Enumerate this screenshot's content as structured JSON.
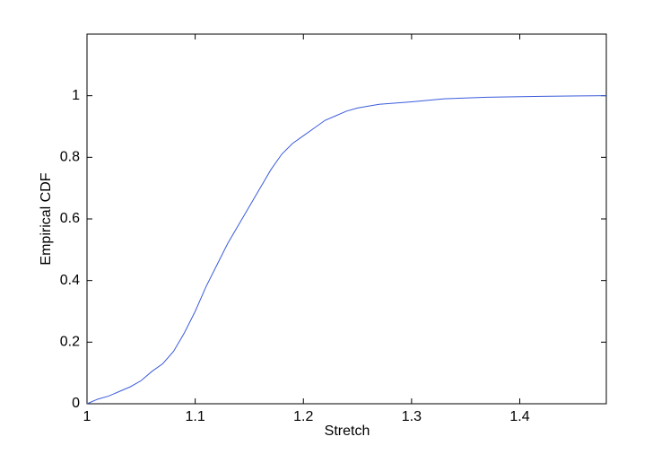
{
  "chart_data": {
    "type": "line",
    "xlabel": "Stretch",
    "ylabel": "Empirical CDF",
    "x": [
      1.0,
      1.01,
      1.02,
      1.03,
      1.04,
      1.05,
      1.06,
      1.07,
      1.08,
      1.09,
      1.1,
      1.11,
      1.12,
      1.13,
      1.14,
      1.15,
      1.16,
      1.17,
      1.18,
      1.19,
      1.2,
      1.21,
      1.22,
      1.23,
      1.24,
      1.25,
      1.27,
      1.3,
      1.33,
      1.37,
      1.42,
      1.48
    ],
    "series": [
      {
        "name": "Empirical CDF",
        "color": "#3b5bdb",
        "values": [
          0,
          0.015,
          0.025,
          0.04,
          0.055,
          0.075,
          0.105,
          0.13,
          0.17,
          0.23,
          0.3,
          0.38,
          0.45,
          0.52,
          0.58,
          0.64,
          0.7,
          0.76,
          0.81,
          0.845,
          0.87,
          0.895,
          0.92,
          0.935,
          0.95,
          0.96,
          0.972,
          0.98,
          0.99,
          0.995,
          0.998,
          1.0
        ]
      }
    ],
    "xlim": [
      1,
      1.48
    ],
    "ylim": [
      0,
      1.2
    ],
    "xticks": [
      1,
      1.1,
      1.2,
      1.3,
      1.4
    ],
    "yticks": [
      0,
      0.2,
      0.4,
      0.6,
      0.8,
      1
    ],
    "grid": false
  }
}
